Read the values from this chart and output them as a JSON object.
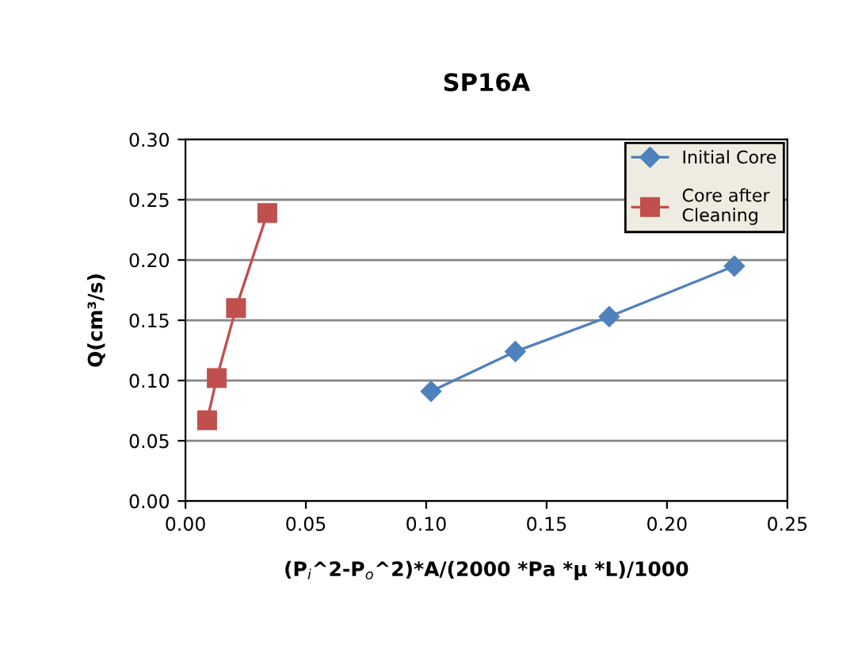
{
  "chart_data": {
    "type": "line",
    "title": "SP16A",
    "xlabel": "(P$_{i}$^2-P$_{o}$^2)*A/(2000 *Pa *μ *L)/1000",
    "ylabel": "Q(cm³/s)",
    "series": [
      {
        "name": "Initial Core",
        "color": "#4f81bd",
        "marker": "diamond",
        "x": [
          0.102,
          0.137,
          0.176,
          0.228
        ],
        "values": [
          0.091,
          0.124,
          0.153,
          0.195
        ]
      },
      {
        "name": "Core after\nCleaning",
        "color": "#c0504d",
        "marker": "square",
        "x": [
          0.009,
          0.013,
          0.021,
          0.034
        ],
        "values": [
          0.067,
          0.102,
          0.16,
          0.239
        ]
      }
    ],
    "xlim": [
      0,
      0.25
    ],
    "xticks": [
      {
        "value": 0,
        "label": "0.00"
      },
      {
        "value": 0.05,
        "label": "0.05"
      },
      {
        "value": 0.1,
        "label": "0.10"
      },
      {
        "value": 0.15,
        "label": "0.15"
      },
      {
        "value": 0.2,
        "label": "0.20"
      },
      {
        "value": 0.25,
        "label": "0.25"
      }
    ],
    "ylim": [
      0,
      0.3
    ],
    "yticks": [
      {
        "value": 0,
        "label": "0.00"
      },
      {
        "value": 0.05,
        "label": "0.05"
      },
      {
        "value": 0.1,
        "label": "0.10"
      },
      {
        "value": 0.15,
        "label": "0.15"
      },
      {
        "value": 0.2,
        "label": "0.20"
      },
      {
        "value": 0.25,
        "label": "0.25"
      },
      {
        "value": 0.3,
        "label": "0.30"
      }
    ],
    "grid": "y",
    "legend": "top right"
  }
}
